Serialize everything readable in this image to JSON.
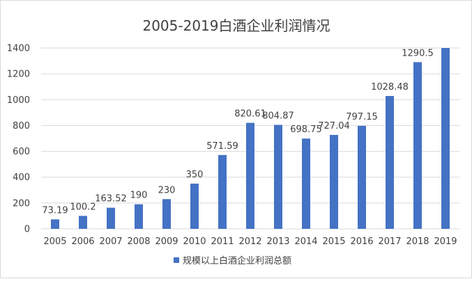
{
  "chart_data": {
    "type": "bar",
    "title": "2005-2019白酒企业利润情况",
    "xlabel": "",
    "ylabel": "",
    "categories": [
      "2005",
      "2006",
      "2007",
      "2008",
      "2009",
      "2010",
      "2011",
      "2012",
      "2013",
      "2014",
      "2015",
      "2016",
      "2017",
      "2018",
      "2019"
    ],
    "series": [
      {
        "name": "规模以上白酒企业利润总额",
        "values": [
          73.19,
          100.2,
          163.52,
          190,
          230,
          350,
          571.59,
          820.61,
          804.87,
          698.75,
          727.04,
          797.15,
          1028.48,
          1290.5,
          1400
        ],
        "data_labels": [
          "73.19",
          "100.2",
          "163.52",
          "190",
          "230",
          "350",
          "571.59",
          "820.61",
          "804.87",
          "698.75",
          "727.04",
          "797.15",
          "1028.48",
          "1290.5",
          ""
        ]
      }
    ],
    "ylim": [
      0,
      1400
    ],
    "yticks": [
      "0",
      "200",
      "400",
      "600",
      "800",
      "1000",
      "1200",
      "1400"
    ],
    "grid": true,
    "legend_position": "bottom",
    "colors": {
      "bar": "#4472c4",
      "grid": "#d9d9d9",
      "text": "#404040"
    }
  }
}
